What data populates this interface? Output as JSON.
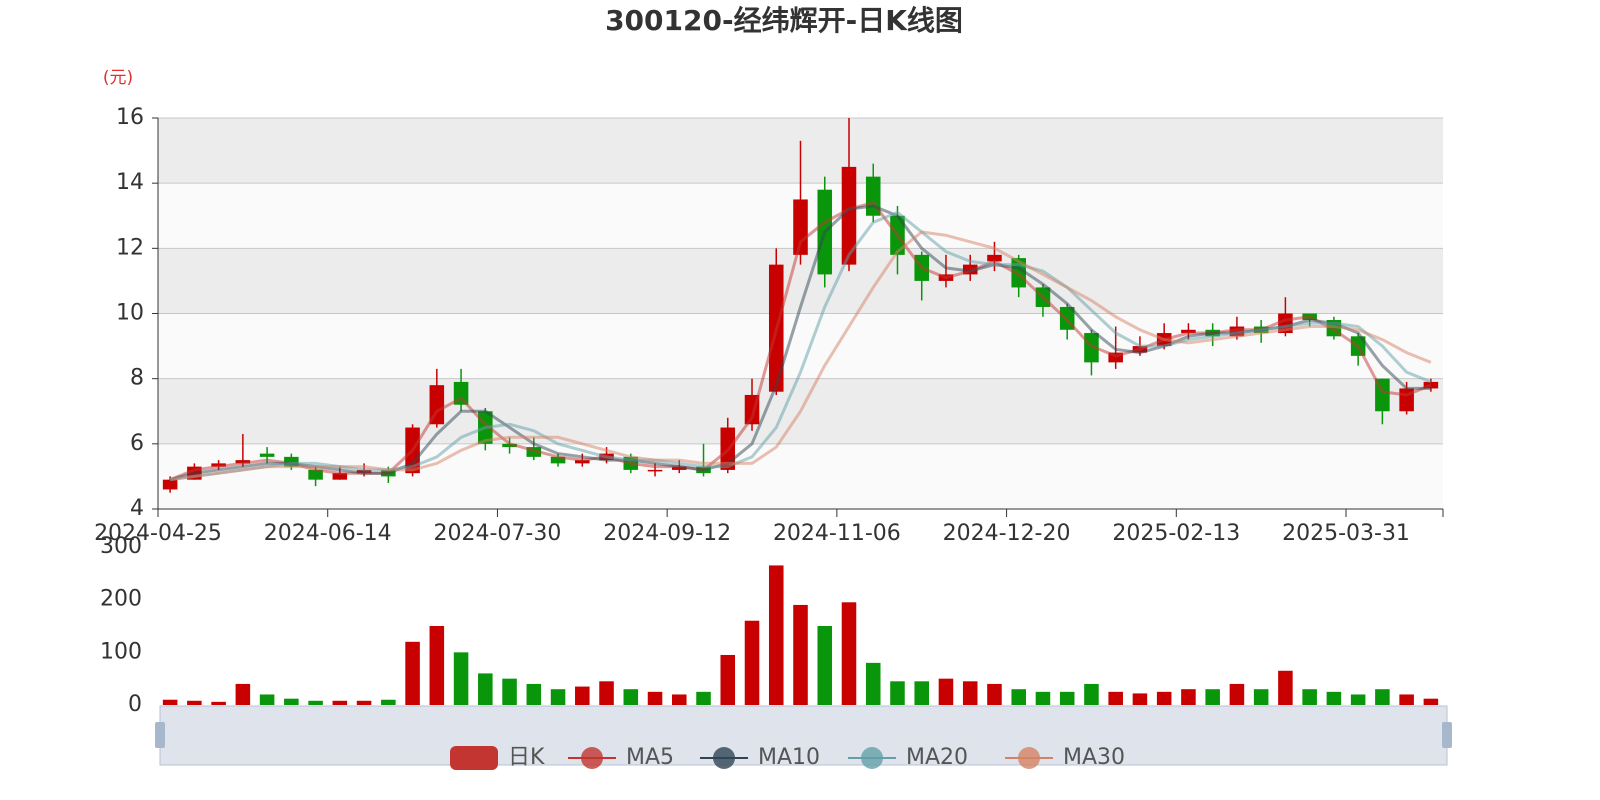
{
  "chart_data": {
    "type": "candlestick",
    "title": "300120-经纬辉开-日K线图",
    "y_label": "(元)",
    "categories": [
      "2024-04-25",
      null,
      null,
      null,
      null,
      null,
      null,
      "2024-06-14",
      null,
      null,
      null,
      null,
      null,
      null,
      "2024-07-30",
      null,
      null,
      null,
      null,
      null,
      null,
      "2024-09-12",
      null,
      null,
      null,
      null,
      null,
      null,
      "2024-11-06",
      null,
      null,
      null,
      null,
      null,
      null,
      "2024-12-20",
      null,
      null,
      null,
      null,
      null,
      null,
      "2025-02-13",
      null,
      null,
      null,
      null,
      null,
      null,
      "2025-03-31",
      null,
      null,
      null
    ],
    "ylim": [
      4,
      16
    ],
    "yticks": [
      4,
      6,
      8,
      10,
      12,
      14,
      16
    ],
    "grid": true,
    "legend": "bottom",
    "series": [
      {
        "name": "日K",
        "type": "candlestick",
        "color": "#c23531",
        "up_color": "#c80000",
        "down_color": "#0a960a",
        "values": [
          [
            4.6,
            4.9,
            4.5,
            5.0
          ],
          [
            4.9,
            5.3,
            4.9,
            5.4
          ],
          [
            5.3,
            5.4,
            5.2,
            5.5
          ],
          [
            5.4,
            5.5,
            5.3,
            6.3
          ],
          [
            5.7,
            5.6,
            5.4,
            5.9
          ],
          [
            5.6,
            5.3,
            5.2,
            5.7
          ],
          [
            5.2,
            4.9,
            4.7,
            5.3
          ],
          [
            4.9,
            5.1,
            4.9,
            5.3
          ],
          [
            5.1,
            5.2,
            5.0,
            5.4
          ],
          [
            5.2,
            5.0,
            4.8,
            5.3
          ],
          [
            5.1,
            6.5,
            5.0,
            6.6
          ],
          [
            6.6,
            7.8,
            6.5,
            8.3
          ],
          [
            7.9,
            7.2,
            7.0,
            8.3
          ],
          [
            7.0,
            6.0,
            5.8,
            7.1
          ],
          [
            6.0,
            5.9,
            5.7,
            6.2
          ],
          [
            5.9,
            5.6,
            5.5,
            6.2
          ],
          [
            5.6,
            5.4,
            5.3,
            5.7
          ],
          [
            5.4,
            5.5,
            5.3,
            5.7
          ],
          [
            5.5,
            5.7,
            5.4,
            5.9
          ],
          [
            5.6,
            5.2,
            5.1,
            5.7
          ],
          [
            5.2,
            5.2,
            5.0,
            5.4
          ],
          [
            5.2,
            5.3,
            5.1,
            5.5
          ],
          [
            5.3,
            5.1,
            5.0,
            6.0
          ],
          [
            5.2,
            6.5,
            5.1,
            6.8
          ],
          [
            6.6,
            7.5,
            6.4,
            8.0
          ],
          [
            7.6,
            11.5,
            7.5,
            12.0
          ],
          [
            11.8,
            13.5,
            11.5,
            15.3
          ],
          [
            13.8,
            11.2,
            10.8,
            14.2
          ],
          [
            11.5,
            14.5,
            11.3,
            16.0
          ],
          [
            14.2,
            13.0,
            12.8,
            14.6
          ],
          [
            13.0,
            11.8,
            11.2,
            13.3
          ],
          [
            11.8,
            11.0,
            10.4,
            11.9
          ],
          [
            11.0,
            11.2,
            10.8,
            11.8
          ],
          [
            11.2,
            11.5,
            11.0,
            11.8
          ],
          [
            11.6,
            11.8,
            11.3,
            12.2
          ],
          [
            11.7,
            10.8,
            10.5,
            11.8
          ],
          [
            10.8,
            10.2,
            9.9,
            10.9
          ],
          [
            10.2,
            9.5,
            9.2,
            10.3
          ],
          [
            9.4,
            8.5,
            8.1,
            9.5
          ],
          [
            8.5,
            8.8,
            8.3,
            9.6
          ],
          [
            8.8,
            9.0,
            8.7,
            9.3
          ],
          [
            9.0,
            9.4,
            8.9,
            9.7
          ],
          [
            9.4,
            9.5,
            9.2,
            9.7
          ],
          [
            9.5,
            9.3,
            9.0,
            9.7
          ],
          [
            9.3,
            9.6,
            9.2,
            9.9
          ],
          [
            9.6,
            9.4,
            9.1,
            9.8
          ],
          [
            9.4,
            10.0,
            9.3,
            10.5
          ],
          [
            10.0,
            9.8,
            9.6,
            10.0
          ],
          [
            9.8,
            9.3,
            9.2,
            9.9
          ],
          [
            9.3,
            8.7,
            8.4,
            9.4
          ],
          [
            8.0,
            7.0,
            6.6,
            8.0
          ],
          [
            7.0,
            7.7,
            6.9,
            7.9
          ],
          [
            7.7,
            7.9,
            7.6,
            8.0
          ]
        ]
      },
      {
        "name": "MA5",
        "type": "line",
        "color": "#c23531",
        "values": [
          4.9,
          5.2,
          5.3,
          5.4,
          5.5,
          5.4,
          5.2,
          5.1,
          5.1,
          5.1,
          5.8,
          7.0,
          7.4,
          6.6,
          6.0,
          5.8,
          5.6,
          5.5,
          5.6,
          5.4,
          5.3,
          5.3,
          5.2,
          5.8,
          6.8,
          9.5,
          12.2,
          12.8,
          13.2,
          13.4,
          12.4,
          11.4,
          11.1,
          11.3,
          11.6,
          11.2,
          10.5,
          9.8,
          9.0,
          8.7,
          8.9,
          9.2,
          9.4,
          9.4,
          9.5,
          9.5,
          9.8,
          9.9,
          9.5,
          9.0,
          7.6,
          7.5,
          7.8
        ]
      },
      {
        "name": "MA10",
        "type": "line",
        "color": "#2f4554",
        "values": [
          4.9,
          5.1,
          5.2,
          5.3,
          5.4,
          5.4,
          5.3,
          5.2,
          5.1,
          5.1,
          5.4,
          6.3,
          7.0,
          7.0,
          6.5,
          6.0,
          5.7,
          5.6,
          5.5,
          5.5,
          5.4,
          5.3,
          5.2,
          5.4,
          6.0,
          7.8,
          10.2,
          12.5,
          13.2,
          13.3,
          13.0,
          12.0,
          11.4,
          11.3,
          11.5,
          11.4,
          10.9,
          10.3,
          9.5,
          8.9,
          8.8,
          9.0,
          9.3,
          9.4,
          9.4,
          9.5,
          9.6,
          9.8,
          9.7,
          9.4,
          8.4,
          7.7,
          7.7
        ]
      },
      {
        "name": "MA20",
        "type": "line",
        "color": "#61a0a8",
        "values": [
          4.9,
          5.0,
          5.1,
          5.2,
          5.3,
          5.4,
          5.4,
          5.3,
          5.2,
          5.2,
          5.3,
          5.6,
          6.2,
          6.5,
          6.6,
          6.4,
          6.0,
          5.8,
          5.6,
          5.5,
          5.5,
          5.4,
          5.3,
          5.3,
          5.6,
          6.5,
          8.2,
          10.2,
          11.8,
          12.8,
          13.1,
          12.5,
          11.9,
          11.6,
          11.5,
          11.5,
          11.3,
          10.8,
          10.1,
          9.4,
          9.0,
          9.0,
          9.2,
          9.3,
          9.4,
          9.5,
          9.6,
          9.7,
          9.7,
          9.6,
          9.0,
          8.2,
          7.9
        ]
      },
      {
        "name": "MA30",
        "type": "line",
        "color": "#d48265",
        "values": [
          4.9,
          5.0,
          5.1,
          5.2,
          5.3,
          5.3,
          5.3,
          5.3,
          5.3,
          5.2,
          5.2,
          5.4,
          5.8,
          6.1,
          6.2,
          6.2,
          6.2,
          6.0,
          5.8,
          5.6,
          5.5,
          5.5,
          5.4,
          5.4,
          5.4,
          5.9,
          7.0,
          8.4,
          9.6,
          10.8,
          11.9,
          12.5,
          12.4,
          12.2,
          12.0,
          11.6,
          11.2,
          10.8,
          10.4,
          9.9,
          9.5,
          9.2,
          9.1,
          9.2,
          9.3,
          9.4,
          9.5,
          9.6,
          9.6,
          9.5,
          9.2,
          8.8,
          8.5
        ]
      }
    ],
    "volume": {
      "type": "bar",
      "ylim": [
        0,
        300
      ],
      "yticks": [
        0,
        100,
        200,
        300
      ],
      "values": [
        10,
        8,
        6,
        40,
        20,
        12,
        8,
        8,
        8,
        10,
        120,
        150,
        100,
        60,
        50,
        40,
        30,
        35,
        45,
        30,
        25,
        20,
        25,
        95,
        160,
        265,
        190,
        150,
        195,
        80,
        45,
        45,
        50,
        45,
        40,
        30,
        25,
        25,
        40,
        25,
        22,
        25,
        30,
        30,
        40,
        30,
        65,
        30,
        25,
        20,
        30,
        20,
        12
      ]
    }
  }
}
